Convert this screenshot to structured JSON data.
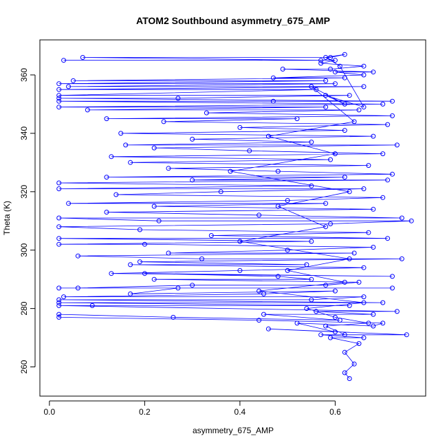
{
  "chart_data": {
    "type": "scatter",
    "title": "ATOM2 Southbound asymmetry_675_AMP",
    "xlabel": "asymmetry_675_AMP",
    "ylabel": "Theta (K)",
    "xlim": [
      -0.02,
      0.79
    ],
    "ylim": [
      250,
      372
    ],
    "x_ticks": [
      0.0,
      0.2,
      0.4,
      0.6
    ],
    "x_tick_labels": [
      "0.0",
      "0.2",
      "0.4",
      "0.6"
    ],
    "y_ticks": [
      260,
      280,
      300,
      320,
      340,
      360
    ],
    "y_tick_labels": [
      "260",
      "280",
      "300",
      "320",
      "340",
      "360"
    ],
    "grid": false,
    "legend": "none",
    "series": [
      {
        "color": "#0000ff",
        "marker": "open-circle",
        "connected": true,
        "points": [
          [
            0.63,
            256
          ],
          [
            0.62,
            258
          ],
          [
            0.64,
            261
          ],
          [
            0.62,
            265
          ],
          [
            0.65,
            268
          ],
          [
            0.59,
            270
          ],
          [
            0.66,
            270
          ],
          [
            0.57,
            271
          ],
          [
            0.75,
            271
          ],
          [
            0.46,
            273
          ],
          [
            0.6,
            272
          ],
          [
            0.52,
            275
          ],
          [
            0.68,
            274
          ],
          [
            0.7,
            275
          ],
          [
            0.44,
            276
          ],
          [
            0.02,
            277
          ],
          [
            0.02,
            278
          ],
          [
            0.26,
            277
          ],
          [
            0.61,
            276
          ],
          [
            0.45,
            278
          ],
          [
            0.68,
            278
          ],
          [
            0.56,
            279
          ],
          [
            0.73,
            279
          ],
          [
            0.02,
            281
          ],
          [
            0.09,
            281
          ],
          [
            0.63,
            281
          ],
          [
            0.02,
            282
          ],
          [
            0.7,
            282
          ],
          [
            0.02,
            283
          ],
          [
            0.55,
            283
          ],
          [
            0.66,
            284
          ],
          [
            0.03,
            284
          ],
          [
            0.45,
            285
          ],
          [
            0.6,
            286
          ],
          [
            0.17,
            285
          ],
          [
            0.27,
            287
          ],
          [
            0.72,
            287
          ],
          [
            0.02,
            287
          ],
          [
            0.06,
            287
          ],
          [
            0.3,
            288
          ],
          [
            0.58,
            288
          ],
          [
            0.65,
            289
          ],
          [
            0.22,
            290
          ],
          [
            0.55,
            290
          ],
          [
            0.48,
            291
          ],
          [
            0.2,
            292
          ],
          [
            0.72,
            291
          ],
          [
            0.13,
            292
          ],
          [
            0.4,
            293
          ],
          [
            0.66,
            294
          ],
          [
            0.17,
            295
          ],
          [
            0.54,
            295
          ],
          [
            0.19,
            296
          ],
          [
            0.74,
            297
          ],
          [
            0.32,
            297
          ],
          [
            0.06,
            298
          ],
          [
            0.64,
            299
          ],
          [
            0.25,
            299
          ],
          [
            0.5,
            300
          ],
          [
            0.68,
            301
          ],
          [
            0.2,
            302
          ],
          [
            0.02,
            302
          ],
          [
            0.55,
            303
          ],
          [
            0.02,
            304
          ],
          [
            0.71,
            304
          ],
          [
            0.34,
            305
          ],
          [
            0.67,
            306
          ],
          [
            0.19,
            307
          ],
          [
            0.02,
            308
          ],
          [
            0.59,
            309
          ],
          [
            0.76,
            310
          ],
          [
            0.23,
            310
          ],
          [
            0.02,
            311
          ],
          [
            0.74,
            311
          ],
          [
            0.44,
            312
          ],
          [
            0.12,
            313
          ],
          [
            0.68,
            314
          ],
          [
            0.22,
            315
          ],
          [
            0.58,
            316
          ],
          [
            0.04,
            316
          ],
          [
            0.5,
            317
          ],
          [
            0.7,
            318
          ],
          [
            0.14,
            319
          ],
          [
            0.36,
            320
          ],
          [
            0.66,
            321
          ],
          [
            0.02,
            321
          ],
          [
            0.55,
            322
          ],
          [
            0.02,
            323
          ],
          [
            0.71,
            324
          ],
          [
            0.3,
            324
          ],
          [
            0.62,
            325
          ],
          [
            0.12,
            325
          ],
          [
            0.72,
            326
          ],
          [
            0.48,
            327
          ],
          [
            0.25,
            328
          ],
          [
            0.67,
            329
          ],
          [
            0.17,
            330
          ],
          [
            0.59,
            331
          ],
          [
            0.13,
            332
          ],
          [
            0.7,
            333
          ],
          [
            0.42,
            334
          ],
          [
            0.22,
            335
          ],
          [
            0.73,
            336
          ],
          [
            0.16,
            336
          ],
          [
            0.55,
            337
          ],
          [
            0.3,
            338
          ],
          [
            0.68,
            339
          ],
          [
            0.15,
            340
          ],
          [
            0.62,
            341
          ],
          [
            0.4,
            342
          ],
          [
            0.71,
            343
          ],
          [
            0.24,
            344
          ],
          [
            0.52,
            345
          ],
          [
            0.12,
            345
          ],
          [
            0.72,
            346
          ],
          [
            0.33,
            347
          ],
          [
            0.65,
            348
          ],
          [
            0.08,
            348
          ],
          [
            0.58,
            349
          ],
          [
            0.02,
            349
          ],
          [
            0.7,
            350
          ],
          [
            0.02,
            351
          ],
          [
            0.47,
            351
          ],
          [
            0.72,
            351
          ],
          [
            0.02,
            352
          ],
          [
            0.27,
            352
          ],
          [
            0.63,
            353
          ],
          [
            0.02,
            353
          ],
          [
            0.56,
            355
          ],
          [
            0.02,
            355
          ],
          [
            0.66,
            356
          ],
          [
            0.04,
            356
          ],
          [
            0.6,
            357
          ],
          [
            0.02,
            357
          ],
          [
            0.58,
            358
          ],
          [
            0.05,
            358
          ],
          [
            0.62,
            359
          ],
          [
            0.47,
            359
          ],
          [
            0.66,
            360
          ],
          [
            0.6,
            361
          ],
          [
            0.68,
            361
          ],
          [
            0.49,
            362
          ],
          [
            0.59,
            362
          ],
          [
            0.66,
            363
          ],
          [
            0.57,
            364
          ],
          [
            0.6,
            365
          ],
          [
            0.03,
            365
          ],
          [
            0.57,
            365
          ],
          [
            0.07,
            366
          ],
          [
            0.59,
            366
          ],
          [
            0.62,
            367
          ],
          [
            0.58,
            366
          ],
          [
            0.61,
            363
          ],
          [
            0.66,
            349
          ],
          [
            0.58,
            353
          ],
          [
            0.62,
            350
          ],
          [
            0.55,
            356
          ],
          [
            0.64,
            344
          ],
          [
            0.46,
            339
          ],
          [
            0.6,
            333
          ],
          [
            0.38,
            327
          ],
          [
            0.63,
            320
          ],
          [
            0.48,
            315
          ],
          [
            0.58,
            308
          ],
          [
            0.4,
            303
          ],
          [
            0.63,
            297
          ],
          [
            0.5,
            293
          ],
          [
            0.62,
            289
          ],
          [
            0.44,
            286
          ],
          [
            0.66,
            282
          ],
          [
            0.54,
            280
          ],
          [
            0.6,
            277
          ],
          [
            0.67,
            275
          ],
          [
            0.58,
            274
          ],
          [
            0.62,
            271
          ]
        ]
      }
    ]
  }
}
